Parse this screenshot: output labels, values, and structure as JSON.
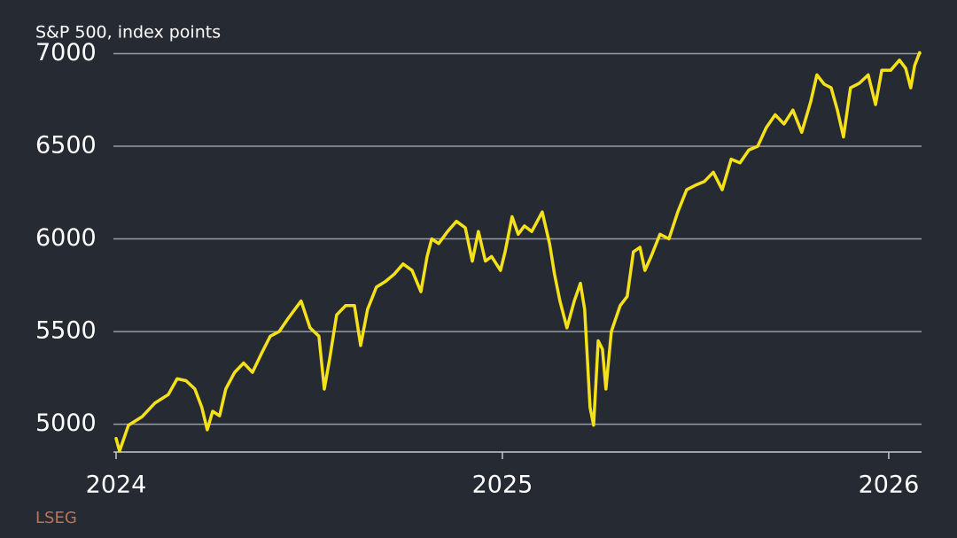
{
  "chart_data": {
    "type": "line",
    "title": "S&P 500, index points",
    "source": "LSEG",
    "x": [
      2024.0,
      2024.009,
      2024.032,
      2024.067,
      2024.101,
      2024.135,
      2024.158,
      2024.181,
      2024.204,
      2024.222,
      2024.236,
      2024.25,
      2024.268,
      2024.284,
      2024.307,
      2024.33,
      2024.353,
      2024.376,
      2024.399,
      2024.422,
      2024.445,
      2024.479,
      2024.502,
      2024.525,
      2024.539,
      2024.553,
      2024.571,
      2024.594,
      2024.617,
      2024.633,
      2024.651,
      2024.674,
      2024.697,
      2024.72,
      2024.743,
      2024.766,
      2024.789,
      2024.805,
      2024.817,
      2024.835,
      2024.858,
      2024.881,
      2024.904,
      2024.922,
      2024.938,
      2024.956,
      2024.972,
      2024.995,
      2025.007,
      2025.025,
      2025.041,
      2025.057,
      2025.076,
      2025.103,
      2025.122,
      2025.135,
      2025.149,
      2025.167,
      2025.186,
      2025.202,
      2025.213,
      2025.227,
      2025.236,
      2025.248,
      2025.259,
      2025.268,
      2025.282,
      2025.305,
      2025.323,
      2025.339,
      2025.356,
      2025.369,
      2025.385,
      2025.408,
      2025.431,
      2025.454,
      2025.477,
      2025.5,
      2025.523,
      2025.546,
      2025.569,
      2025.592,
      2025.615,
      2025.638,
      2025.661,
      2025.683,
      2025.706,
      2025.729,
      2025.752,
      2025.775,
      2025.798,
      2025.814,
      2025.833,
      2025.851,
      2025.867,
      2025.883,
      2025.901,
      2025.924,
      2025.947,
      2025.966,
      2025.982,
      2026.005,
      2026.028,
      2026.044,
      2026.057,
      2026.067,
      2026.08
    ],
    "series": [
      {
        "name": "S&P 500",
        "color": "#f5e11a",
        "values": [
          4923,
          4855,
          4995,
          5040,
          5115,
          5160,
          5245,
          5235,
          5190,
          5090,
          4970,
          5070,
          5045,
          5190,
          5280,
          5330,
          5280,
          5380,
          5475,
          5500,
          5570,
          5665,
          5520,
          5475,
          5190,
          5355,
          5590,
          5640,
          5640,
          5425,
          5620,
          5740,
          5770,
          5810,
          5865,
          5830,
          5715,
          5905,
          6000,
          5975,
          6040,
          6095,
          6060,
          5880,
          6040,
          5880,
          5905,
          5830,
          5930,
          6120,
          6025,
          6070,
          6040,
          6145,
          5975,
          5810,
          5665,
          5520,
          5665,
          5760,
          5620,
          5090,
          4995,
          5450,
          5405,
          5190,
          5500,
          5640,
          5690,
          5930,
          5955,
          5830,
          5905,
          6025,
          6000,
          6145,
          6265,
          6290,
          6310,
          6360,
          6265,
          6430,
          6410,
          6480,
          6500,
          6600,
          6670,
          6620,
          6695,
          6575,
          6740,
          6885,
          6835,
          6815,
          6695,
          6550,
          6815,
          6840,
          6885,
          6725,
          6910,
          6910,
          6965,
          6920,
          6815,
          6935,
          7005
        ]
      }
    ],
    "xlim": [
      2024,
      2026.085
    ],
    "xticks": [
      2024,
      2025,
      2026
    ],
    "ylim": [
      4850,
      7050
    ],
    "yticks": [
      5000,
      5500,
      6000,
      6500,
      7000
    ],
    "grid": true
  }
}
